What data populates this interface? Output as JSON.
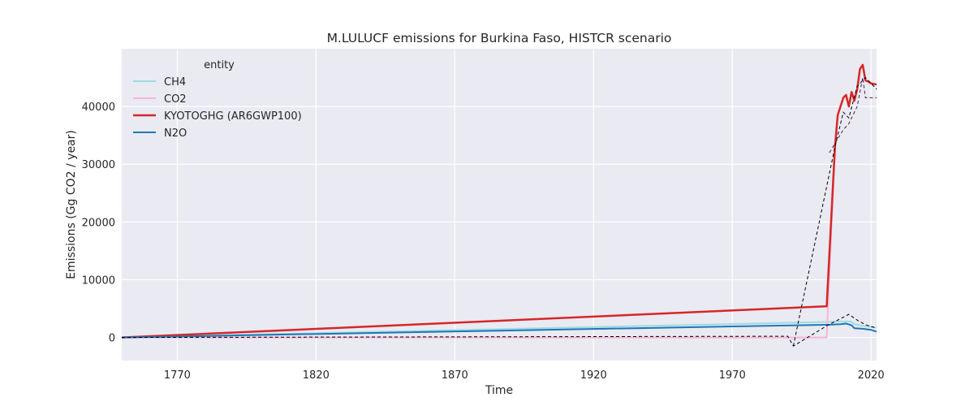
{
  "chart_data": {
    "type": "line",
    "title": "M.LULUCF emissions for Burkina Faso, HISTCR scenario",
    "xlabel": "Time",
    "ylabel": "Emissions (Gg CO2 / year)",
    "xlim": [
      1750,
      2022
    ],
    "ylim": [
      -4000,
      50000
    ],
    "xticks": [
      1770,
      1820,
      1870,
      1920,
      1970,
      2020
    ],
    "yticks": [
      0,
      10000,
      20000,
      30000,
      40000
    ],
    "grid": true,
    "legend": {
      "title": "entity",
      "placement": "top-left"
    },
    "series": [
      {
        "name": "CH4",
        "color": "#9edae5",
        "width": 2,
        "x": [
          1750,
          2005,
          2009,
          2010,
          2011,
          2013,
          2014,
          2017,
          2020,
          2022
        ],
        "y": [
          0,
          2700,
          2800,
          2700,
          2800,
          2700,
          2300,
          2000,
          1800,
          1700
        ]
      },
      {
        "name": "CO2",
        "color": "#f7b6d2",
        "width": 2,
        "x": [
          1750,
          1990,
          2004,
          2007
        ],
        "y": [
          0,
          0,
          0,
          33000
        ]
      },
      {
        "name": "KYOTOGHG (AR6GWP100)",
        "color": "#d62728",
        "width": 2.5,
        "x": [
          1750,
          2004,
          2007,
          2008,
          2010,
          2011,
          2012,
          2013,
          2014,
          2015,
          2016,
          2017,
          2018,
          2019,
          2020,
          2022
        ],
        "y": [
          0,
          5400,
          33000,
          38500,
          41500,
          42000,
          40000,
          42500,
          41000,
          43000,
          46500,
          47200,
          44500,
          44300,
          44000,
          43800
        ]
      },
      {
        "name": "N2O",
        "color": "#1f77b4",
        "width": 2,
        "x": [
          1750,
          2005,
          2009,
          2011,
          2013,
          2014,
          2017,
          2020,
          2022
        ],
        "y": [
          0,
          2200,
          2300,
          2400,
          2100,
          1600,
          1500,
          1300,
          1000
        ]
      }
    ],
    "reference_lines": [
      {
        "color": "#000000",
        "dash": "4,3",
        "x": [
          1750,
          1990,
          1992,
          2004,
          2012,
          2015,
          2018,
          2022
        ],
        "y": [
          0,
          200,
          -1500,
          2000,
          4000,
          3000,
          2200,
          1600
        ]
      },
      {
        "color": "#000000",
        "dash": "4,3",
        "x": [
          1992,
          2007,
          2010,
          2012,
          2015,
          2018,
          2022
        ],
        "y": [
          -1500,
          33000,
          39000,
          38000,
          43500,
          45000,
          43000
        ]
      },
      {
        "color": "#4a2040",
        "dash": "4,3",
        "x": [
          2005,
          2010,
          2012,
          2015,
          2017,
          2018,
          2022
        ],
        "y": [
          32000,
          36000,
          37000,
          40000,
          45000,
          41500,
          41500
        ]
      }
    ]
  }
}
